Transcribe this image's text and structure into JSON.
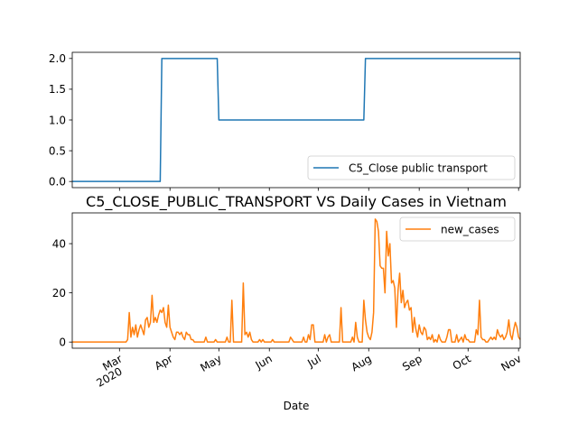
{
  "chart_data": [
    {
      "type": "line",
      "title": "",
      "xlabel": "",
      "ylabel": "",
      "ylim": [
        -0.1,
        2.1
      ],
      "yticks": [
        "0.0",
        "0.5",
        "1.0",
        "1.5",
        "2.0"
      ],
      "yticks_values": [
        0,
        0.5,
        1.0,
        1.5,
        2.0
      ],
      "legend_position": "lower-right",
      "series": [
        {
          "name": "C5_Close public transport",
          "color": "#1f77b4",
          "points": [
            [
              "2020-02-01",
              0
            ],
            [
              "2020-03-26",
              0
            ],
            [
              "2020-03-27",
              2
            ],
            [
              "2020-04-30",
              2
            ],
            [
              "2020-05-01",
              1
            ],
            [
              "2020-07-29",
              1
            ],
            [
              "2020-07-30",
              2
            ],
            [
              "2020-11-02",
              2
            ]
          ]
        }
      ]
    },
    {
      "type": "line",
      "title": "C5_CLOSE_PUBLIC_TRANSPORT VS Daily Cases in Vietnam",
      "xlabel": "Date",
      "ylabel": "",
      "ylim": [
        -2.5,
        52.5
      ],
      "yticks": [
        "0",
        "20",
        "40"
      ],
      "yticks_values": [
        0,
        20,
        40
      ],
      "xlim": [
        "2020-02-01",
        "2020-11-02"
      ],
      "xticks": [
        {
          "date": "2020-03-01",
          "label": "Mar",
          "sub": "2020"
        },
        {
          "date": "2020-04-01",
          "label": "Apr"
        },
        {
          "date": "2020-05-01",
          "label": "May"
        },
        {
          "date": "2020-06-01",
          "label": "Jun"
        },
        {
          "date": "2020-07-01",
          "label": "Jul"
        },
        {
          "date": "2020-08-01",
          "label": "Aug"
        },
        {
          "date": "2020-09-01",
          "label": "Sep"
        },
        {
          "date": "2020-10-01",
          "label": "Oct"
        },
        {
          "date": "2020-11-01",
          "label": "Nov"
        }
      ],
      "legend_position": "upper-right",
      "series": [
        {
          "name": "new_cases",
          "color": "#ff7f0e",
          "points": [
            [
              "2020-02-01",
              0
            ],
            [
              "2020-03-05",
              0
            ],
            [
              "2020-03-06",
              1
            ],
            [
              "2020-03-07",
              12
            ],
            [
              "2020-03-08",
              2
            ],
            [
              "2020-03-09",
              6
            ],
            [
              "2020-03-10",
              3
            ],
            [
              "2020-03-11",
              7
            ],
            [
              "2020-03-12",
              2
            ],
            [
              "2020-03-13",
              5
            ],
            [
              "2020-03-14",
              7
            ],
            [
              "2020-03-15",
              5
            ],
            [
              "2020-03-16",
              3
            ],
            [
              "2020-03-17",
              9
            ],
            [
              "2020-03-18",
              10
            ],
            [
              "2020-03-19",
              6
            ],
            [
              "2020-03-20",
              8
            ],
            [
              "2020-03-21",
              19
            ],
            [
              "2020-03-22",
              8
            ],
            [
              "2020-03-23",
              10
            ],
            [
              "2020-03-24",
              8
            ],
            [
              "2020-03-25",
              11
            ],
            [
              "2020-03-26",
              13
            ],
            [
              "2020-03-27",
              12
            ],
            [
              "2020-03-28",
              14
            ],
            [
              "2020-03-29",
              8
            ],
            [
              "2020-03-30",
              6
            ],
            [
              "2020-03-31",
              15
            ],
            [
              "2020-04-01",
              6
            ],
            [
              "2020-04-02",
              4
            ],
            [
              "2020-04-03",
              2
            ],
            [
              "2020-04-04",
              1
            ],
            [
              "2020-04-05",
              4
            ],
            [
              "2020-04-06",
              4
            ],
            [
              "2020-04-07",
              3
            ],
            [
              "2020-04-08",
              4
            ],
            [
              "2020-04-09",
              2
            ],
            [
              "2020-04-10",
              1
            ],
            [
              "2020-04-11",
              4
            ],
            [
              "2020-04-12",
              3
            ],
            [
              "2020-04-13",
              3
            ],
            [
              "2020-04-14",
              1
            ],
            [
              "2020-04-15",
              1
            ],
            [
              "2020-04-16",
              0
            ],
            [
              "2020-04-22",
              0
            ],
            [
              "2020-04-23",
              2
            ],
            [
              "2020-04-24",
              0
            ],
            [
              "2020-04-28",
              0
            ],
            [
              "2020-04-29",
              1
            ],
            [
              "2020-04-30",
              0
            ],
            [
              "2020-05-05",
              0
            ],
            [
              "2020-05-06",
              2
            ],
            [
              "2020-05-07",
              0
            ],
            [
              "2020-05-08",
              0
            ],
            [
              "2020-05-09",
              17
            ],
            [
              "2020-05-10",
              0
            ],
            [
              "2020-05-15",
              0
            ],
            [
              "2020-05-16",
              24
            ],
            [
              "2020-05-17",
              3
            ],
            [
              "2020-05-18",
              4
            ],
            [
              "2020-05-19",
              2
            ],
            [
              "2020-05-20",
              4
            ],
            [
              "2020-05-21",
              1
            ],
            [
              "2020-05-22",
              0
            ],
            [
              "2020-05-25",
              0
            ],
            [
              "2020-05-26",
              1
            ],
            [
              "2020-05-27",
              0
            ],
            [
              "2020-05-28",
              1
            ],
            [
              "2020-05-29",
              0
            ],
            [
              "2020-06-02",
              0
            ],
            [
              "2020-06-03",
              1
            ],
            [
              "2020-06-04",
              0
            ],
            [
              "2020-06-13",
              0
            ],
            [
              "2020-06-14",
              2
            ],
            [
              "2020-06-15",
              1
            ],
            [
              "2020-06-16",
              0
            ],
            [
              "2020-06-21",
              0
            ],
            [
              "2020-06-22",
              2
            ],
            [
              "2020-06-23",
              0
            ],
            [
              "2020-06-24",
              0
            ],
            [
              "2020-06-25",
              3
            ],
            [
              "2020-06-26",
              1
            ],
            [
              "2020-06-27",
              7
            ],
            [
              "2020-06-28",
              7
            ],
            [
              "2020-06-29",
              0
            ],
            [
              "2020-07-04",
              0
            ],
            [
              "2020-07-05",
              3
            ],
            [
              "2020-07-06",
              0
            ],
            [
              "2020-07-07",
              2
            ],
            [
              "2020-07-08",
              3
            ],
            [
              "2020-07-09",
              0
            ],
            [
              "2020-07-14",
              0
            ],
            [
              "2020-07-15",
              14
            ],
            [
              "2020-07-16",
              0
            ],
            [
              "2020-07-21",
              0
            ],
            [
              "2020-07-22",
              2
            ],
            [
              "2020-07-23",
              0
            ],
            [
              "2020-07-24",
              8
            ],
            [
              "2020-07-25",
              2
            ],
            [
              "2020-07-26",
              0
            ],
            [
              "2020-07-28",
              0
            ],
            [
              "2020-07-29",
              17
            ],
            [
              "2020-07-30",
              9
            ],
            [
              "2020-07-31",
              4
            ],
            [
              "2020-08-01",
              2
            ],
            [
              "2020-08-02",
              1
            ],
            [
              "2020-08-03",
              4
            ],
            [
              "2020-08-04",
              12
            ],
            [
              "2020-08-05",
              50
            ],
            [
              "2020-08-06",
              49
            ],
            [
              "2020-08-07",
              45
            ],
            [
              "2020-08-08",
              31
            ],
            [
              "2020-08-09",
              30
            ],
            [
              "2020-08-10",
              30
            ],
            [
              "2020-08-11",
              20
            ],
            [
              "2020-08-12",
              45
            ],
            [
              "2020-08-13",
              35
            ],
            [
              "2020-08-14",
              40
            ],
            [
              "2020-08-15",
              24
            ],
            [
              "2020-08-16",
              25
            ],
            [
              "2020-08-17",
              22
            ],
            [
              "2020-08-18",
              6
            ],
            [
              "2020-08-19",
              21
            ],
            [
              "2020-08-20",
              28
            ],
            [
              "2020-08-21",
              16
            ],
            [
              "2020-08-22",
              21
            ],
            [
              "2020-08-23",
              14
            ],
            [
              "2020-08-24",
              16
            ],
            [
              "2020-08-25",
              17
            ],
            [
              "2020-08-26",
              13
            ],
            [
              "2020-08-27",
              14
            ],
            [
              "2020-08-28",
              4
            ],
            [
              "2020-08-29",
              10
            ],
            [
              "2020-08-30",
              5
            ],
            [
              "2020-08-31",
              2
            ],
            [
              "2020-09-01",
              7
            ],
            [
              "2020-09-02",
              4
            ],
            [
              "2020-09-03",
              3
            ],
            [
              "2020-09-04",
              6
            ],
            [
              "2020-09-05",
              5
            ],
            [
              "2020-09-06",
              1
            ],
            [
              "2020-09-07",
              2
            ],
            [
              "2020-09-08",
              1
            ],
            [
              "2020-09-09",
              3
            ],
            [
              "2020-09-10",
              0
            ],
            [
              "2020-09-11",
              1
            ],
            [
              "2020-09-12",
              0
            ],
            [
              "2020-09-13",
              3
            ],
            [
              "2020-09-14",
              1
            ],
            [
              "2020-09-15",
              0
            ],
            [
              "2020-09-17",
              0
            ],
            [
              "2020-09-18",
              2
            ],
            [
              "2020-09-19",
              5
            ],
            [
              "2020-09-20",
              5
            ],
            [
              "2020-09-21",
              0
            ],
            [
              "2020-09-23",
              0
            ],
            [
              "2020-09-24",
              3
            ],
            [
              "2020-09-25",
              0
            ],
            [
              "2020-09-26",
              1
            ],
            [
              "2020-09-27",
              2
            ],
            [
              "2020-09-28",
              0
            ],
            [
              "2020-09-29",
              3
            ],
            [
              "2020-09-30",
              1
            ],
            [
              "2020-10-01",
              1
            ],
            [
              "2020-10-02",
              0
            ],
            [
              "2020-10-05",
              0
            ],
            [
              "2020-10-06",
              5
            ],
            [
              "2020-10-07",
              3
            ],
            [
              "2020-10-08",
              17
            ],
            [
              "2020-10-09",
              2
            ],
            [
              "2020-10-10",
              1
            ],
            [
              "2020-10-11",
              1
            ],
            [
              "2020-10-12",
              0
            ],
            [
              "2020-10-13",
              0
            ],
            [
              "2020-10-14",
              1
            ],
            [
              "2020-10-15",
              2
            ],
            [
              "2020-10-16",
              1
            ],
            [
              "2020-10-17",
              2
            ],
            [
              "2020-10-18",
              1
            ],
            [
              "2020-10-19",
              5
            ],
            [
              "2020-10-20",
              3
            ],
            [
              "2020-10-21",
              2
            ],
            [
              "2020-10-22",
              3
            ],
            [
              "2020-10-23",
              1
            ],
            [
              "2020-10-24",
              2
            ],
            [
              "2020-10-25",
              4
            ],
            [
              "2020-10-26",
              9
            ],
            [
              "2020-10-27",
              3
            ],
            [
              "2020-10-28",
              1
            ],
            [
              "2020-10-29",
              5
            ],
            [
              "2020-10-30",
              8
            ],
            [
              "2020-10-31",
              6
            ],
            [
              "2020-11-01",
              2
            ],
            [
              "2020-11-02",
              1
            ]
          ]
        }
      ]
    }
  ]
}
